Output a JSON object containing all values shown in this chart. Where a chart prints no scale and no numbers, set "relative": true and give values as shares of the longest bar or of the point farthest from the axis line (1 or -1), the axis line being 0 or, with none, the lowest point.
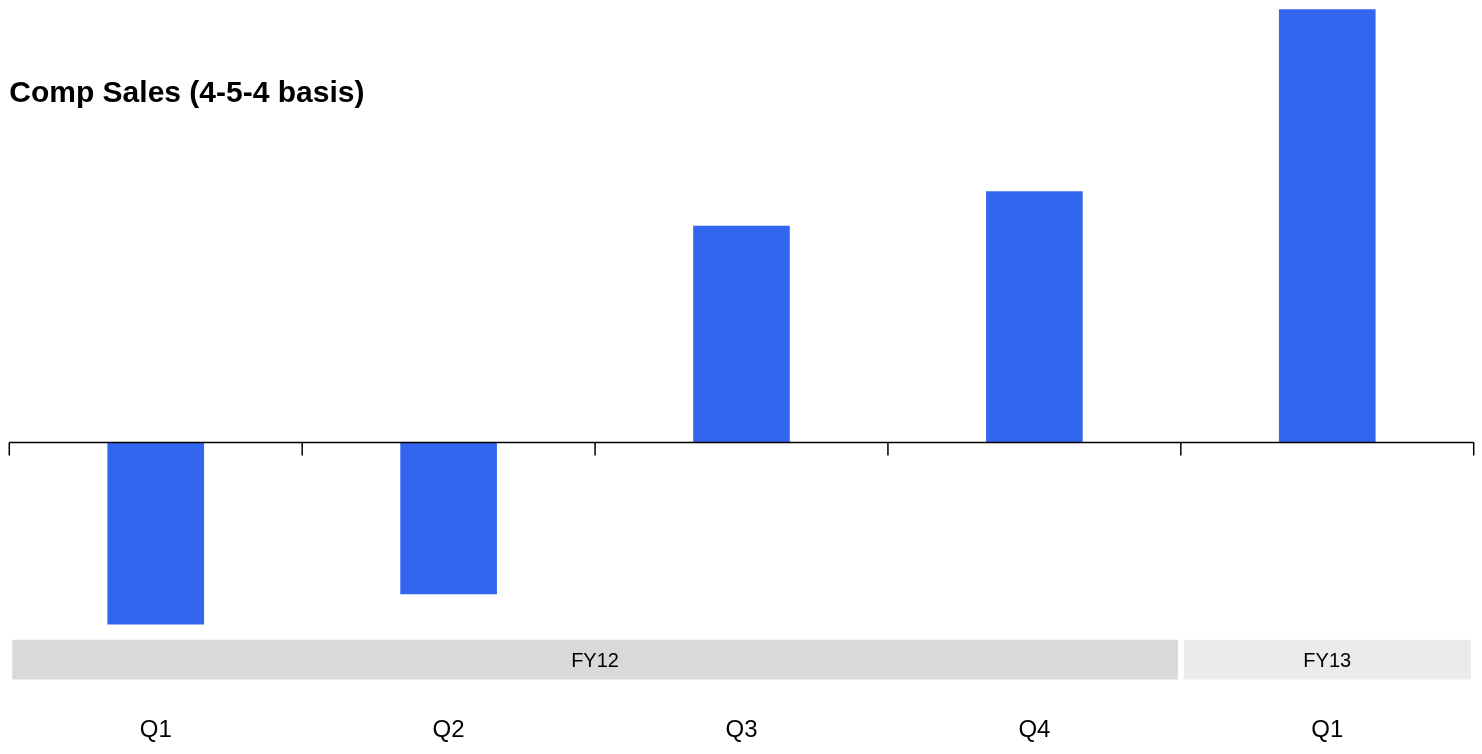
{
  "chart_data": {
    "type": "bar",
    "title": "Comp Sales (4-5-4 basis)",
    "relative": true,
    "categories": [
      "Q1",
      "Q2",
      "Q3",
      "Q4",
      "Q1"
    ],
    "values": [
      -0.42,
      -0.35,
      0.5,
      0.58,
      1
    ],
    "color": "#3366ee",
    "annotations": [
      "FY12",
      "FY13"
    ],
    "grid": false
  }
}
